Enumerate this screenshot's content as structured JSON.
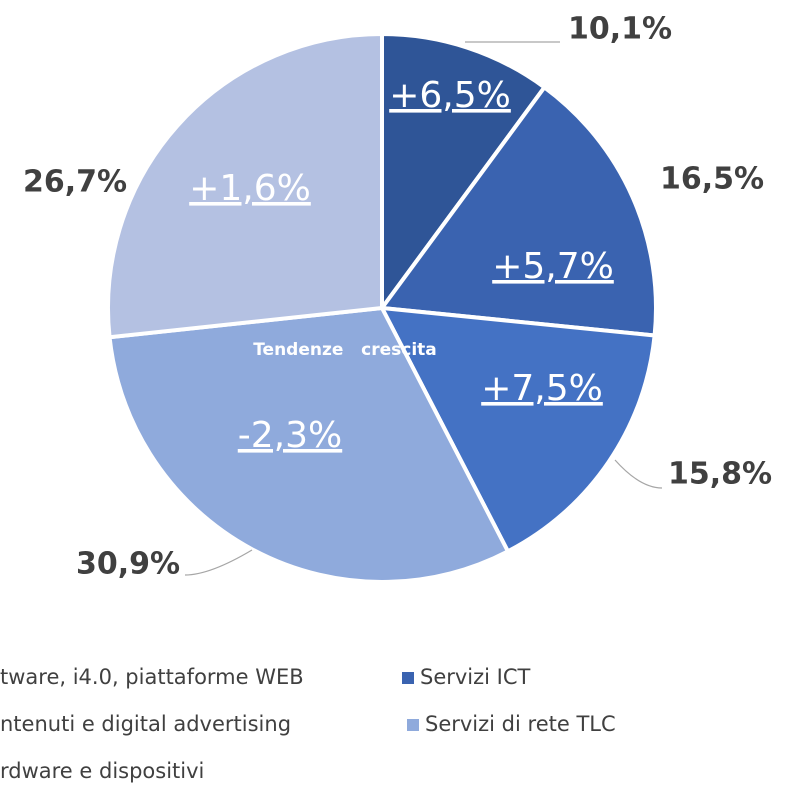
{
  "chart_data": {
    "type": "pie",
    "categories": [
      "tware, i4.0, piattaforme WEB",
      "Servizi ICT",
      "ntenuti e digital advertising",
      "Servizi di rete TLC",
      "rdware e dispositivi"
    ],
    "values": [
      10.1,
      16.5,
      15.8,
      30.9,
      26.7
    ],
    "value_labels": [
      "10,1%",
      "16,5%",
      "15,8%",
      "30,9%",
      "26,7%"
    ],
    "growth_labels": [
      "+6,5%",
      "+5,7%",
      "+7,5%",
      "-2,3%",
      "+1,6%"
    ],
    "colors": [
      "#2f5597",
      "#3a63b0",
      "#4472c4",
      "#8faadc",
      "#b4c1e2"
    ],
    "center_label": "Tendenze   crescita"
  }
}
